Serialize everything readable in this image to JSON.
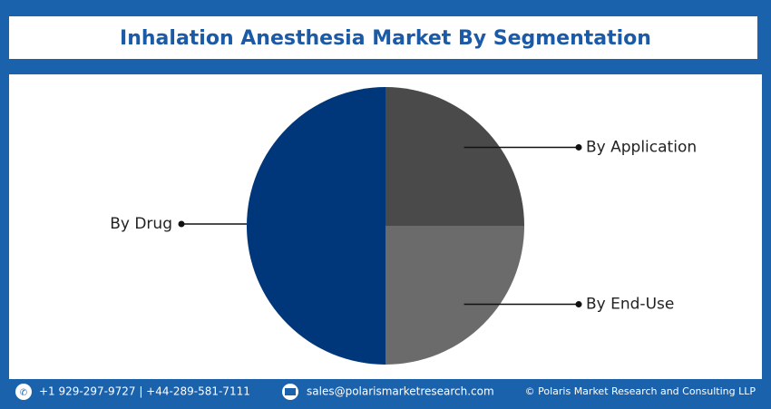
{
  "chart_data": {
    "type": "pie",
    "title": "Inhalation Anesthesia Market By Segmentation",
    "categories": [
      "By Application",
      "By End-Use",
      "By Drug"
    ],
    "values": [
      25,
      25,
      50
    ],
    "colors": [
      "#4a4a4a",
      "#6b6b6b",
      "#00367a"
    ]
  },
  "footer": {
    "phone": "+1 929-297-9727 | +44-289-581-7111",
    "email": "sales@polarismarketresearch.com",
    "copyright": "© Polaris Market Research and Consulting LLP"
  }
}
